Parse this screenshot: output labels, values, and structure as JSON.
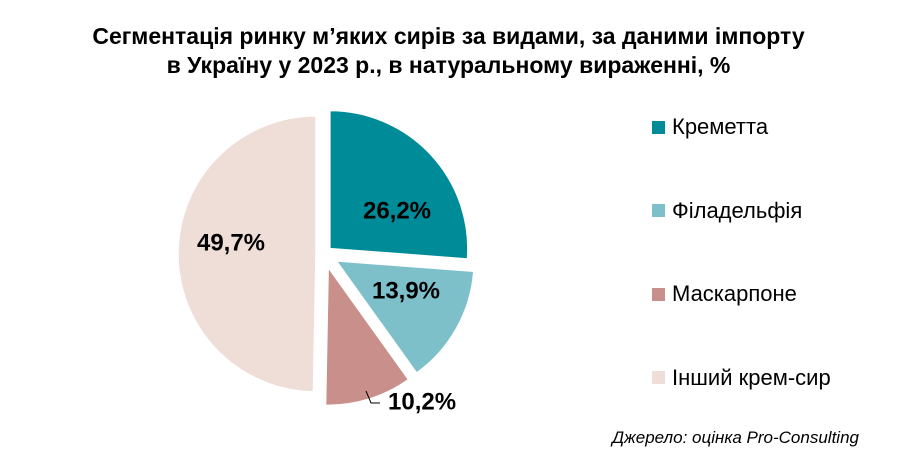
{
  "title": {
    "line1": "Сегментація ринку м’яких сирів за видами, за даними імпорту",
    "line2": "в Україну у 2023 р., в натуральному вираженні, %"
  },
  "source": "Джерело: оцінка Pro-Consulting",
  "chart_data": {
    "type": "pie",
    "title": "Сегментація ринку м’яких сирів за видами, за даними імпорту в Україну у 2023 р., в натуральному вираженні, %",
    "categories": [
      "Креметта",
      "Філадельфія",
      "Маскарпоне",
      "Інший крем-сир"
    ],
    "values": [
      26.2,
      13.9,
      10.2,
      49.7
    ],
    "labels": [
      "26,2%",
      "13,9%",
      "10,2%",
      "49,7%"
    ],
    "colors": [
      "#008b98",
      "#7ec0ca",
      "#c98f8a",
      "#efddd8"
    ],
    "exploded": true,
    "legend_position": "right"
  }
}
